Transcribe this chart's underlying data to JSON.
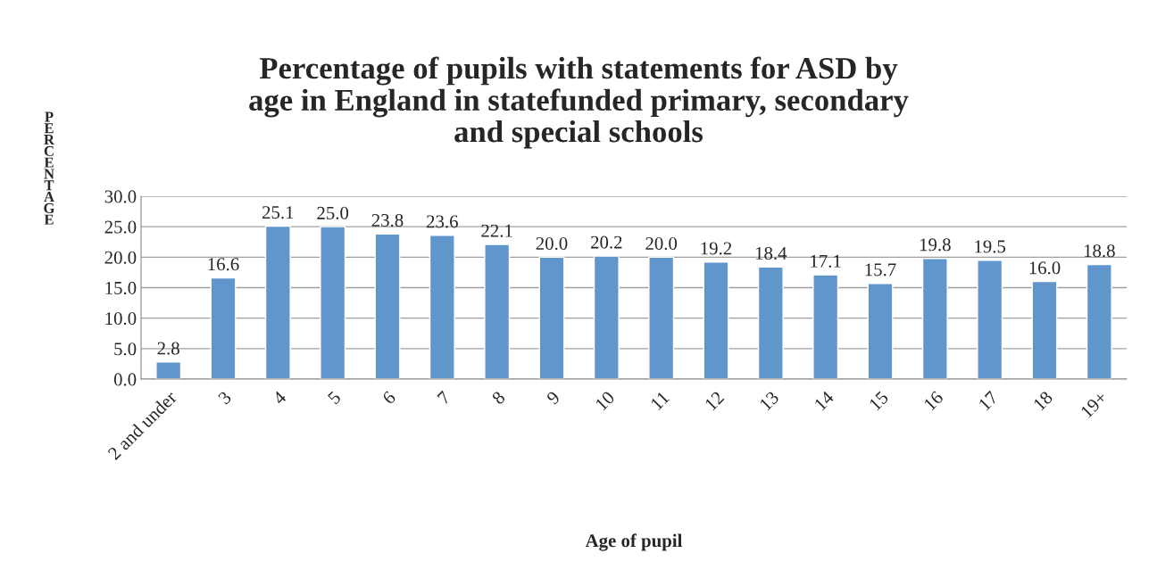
{
  "chart_data": {
    "type": "bar",
    "title": "Percentage of pupils with statements for ASD by\nage in England in statefunded primary, secondary\nand special schools",
    "xlabel": "Age of pupil",
    "ylabel": "PERCENTAGE",
    "categories": [
      "2 and under",
      "3",
      "4",
      "5",
      "6",
      "7",
      "8",
      "9",
      "10",
      "11",
      "12",
      "13",
      "14",
      "15",
      "16",
      "17",
      "18",
      "19+"
    ],
    "values": [
      2.8,
      16.6,
      25.1,
      25.0,
      23.8,
      23.6,
      22.1,
      20.0,
      20.2,
      20.0,
      19.2,
      18.4,
      17.1,
      15.7,
      19.8,
      19.5,
      16.0,
      18.8
    ],
    "color": "#6096cc",
    "ylim": [
      0,
      30
    ],
    "yticks": [
      {
        "value": 0,
        "label": "0.0"
      },
      {
        "value": 5,
        "label": "5.0"
      },
      {
        "value": 10,
        "label": "10.0"
      },
      {
        "value": 15,
        "label": "15.0"
      },
      {
        "value": 20,
        "label": "20.0"
      },
      {
        "value": 25,
        "label": "25.0"
      },
      {
        "value": 30,
        "label": "30.0"
      }
    ],
    "value_labels": [
      "2.8",
      "16.6",
      "25.1",
      "25.0",
      "23.8",
      "23.6",
      "22.1",
      "20.0",
      "20.2",
      "20.0",
      "19.2",
      "18.4",
      "17.1",
      "15.7",
      "19.8",
      "19.5",
      "16.0",
      "18.8"
    ],
    "grid": "y",
    "legend": false
  }
}
